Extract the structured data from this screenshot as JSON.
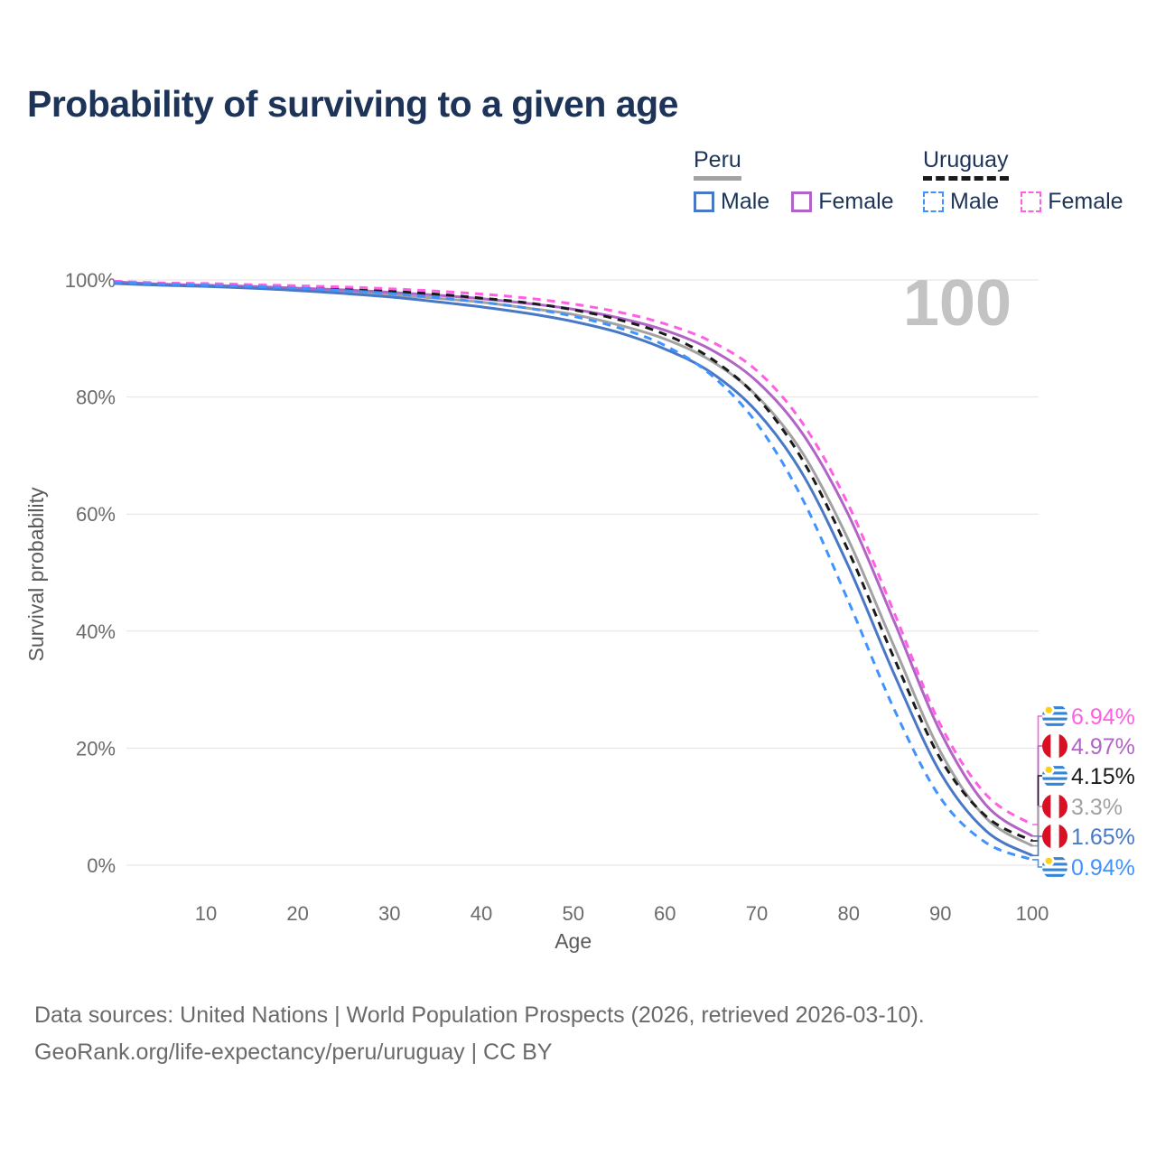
{
  "page": {
    "title": "Probability of surviving to a given age"
  },
  "legend": {
    "peru": {
      "title": "Peru",
      "male": "Male",
      "female": "Female"
    },
    "uruguay": {
      "title": "Uruguay",
      "male": "Male",
      "female": "Female"
    }
  },
  "chart_data": {
    "type": "line",
    "title": "Probability of surviving to a given age",
    "xlabel": "Age",
    "ylabel": "Survival probability",
    "xlim": [
      0,
      100
    ],
    "ylim": [
      0,
      100
    ],
    "xticks": [
      10,
      20,
      30,
      40,
      50,
      60,
      70,
      80,
      90,
      100
    ],
    "yticks": [
      0,
      20,
      40,
      60,
      80,
      100
    ],
    "ytick_suffix": "%",
    "grid": "horizontal",
    "legend_position": "top-right",
    "watermark": "100",
    "x": [
      0,
      5,
      10,
      15,
      20,
      25,
      30,
      35,
      40,
      45,
      50,
      55,
      60,
      65,
      70,
      75,
      80,
      85,
      90,
      95,
      100
    ],
    "series": [
      {
        "name": "Uruguay Female",
        "country": "Uruguay",
        "sex": "Female",
        "flag": "uy",
        "color": "#ff5fe1",
        "dash": true,
        "end_label": "6.94%",
        "values": [
          99.8,
          99.5,
          99.4,
          99.2,
          99.0,
          98.8,
          98.5,
          98.1,
          97.6,
          96.9,
          95.9,
          94.5,
          92.5,
          89.5,
          84.5,
          75.5,
          61.5,
          43.0,
          24.0,
          12.0,
          6.94
        ]
      },
      {
        "name": "Peru Female",
        "country": "Peru",
        "sex": "Female",
        "flag": "pe",
        "color": "#b164c6",
        "dash": false,
        "end_label": "4.97%",
        "values": [
          99.7,
          99.3,
          99.1,
          98.9,
          98.6,
          98.3,
          97.9,
          97.4,
          96.8,
          96.0,
          95.0,
          93.5,
          91.4,
          88.1,
          82.7,
          73.7,
          59.8,
          41.5,
          22.8,
          10.2,
          4.97
        ]
      },
      {
        "name": "Uruguay",
        "country": "Uruguay",
        "sex": "Both",
        "flag": "uy",
        "color": "#1a1a1a",
        "dash": true,
        "end_label": "4.15%",
        "values": [
          99.7,
          99.4,
          99.3,
          99.1,
          98.8,
          98.5,
          98.1,
          97.6,
          96.9,
          96.1,
          94.9,
          93.2,
          90.7,
          86.6,
          80.0,
          69.2,
          53.6,
          35.2,
          18.2,
          8.3,
          4.15
        ]
      },
      {
        "name": "Peru",
        "country": "Peru",
        "sex": "Both",
        "flag": "pe",
        "color": "#a2a2a2",
        "dash": false,
        "end_label": "3.3%",
        "values": [
          99.6,
          99.2,
          99.0,
          98.8,
          98.4,
          98.0,
          97.5,
          96.9,
          96.2,
          95.2,
          94.1,
          92.3,
          89.9,
          86.2,
          80.2,
          70.4,
          55.5,
          37.2,
          19.4,
          8.0,
          3.3
        ]
      },
      {
        "name": "Peru Male",
        "country": "Peru",
        "sex": "Male",
        "flag": "pe",
        "color": "#4878c6",
        "dash": false,
        "end_label": "1.65%",
        "values": [
          99.4,
          99.1,
          98.9,
          98.6,
          98.2,
          97.7,
          97.1,
          96.3,
          95.4,
          94.3,
          92.9,
          91.0,
          88.2,
          84.2,
          77.5,
          66.8,
          51.0,
          32.5,
          15.8,
          5.8,
          1.65
        ]
      },
      {
        "name": "Uruguay Male",
        "country": "Uruguay",
        "sex": "Male",
        "flag": "uy",
        "color": "#4093ff",
        "dash": true,
        "end_label": "0.94%",
        "values": [
          99.6,
          99.3,
          99.1,
          98.9,
          98.6,
          98.2,
          97.7,
          97.0,
          96.2,
          95.2,
          93.8,
          91.8,
          88.8,
          83.8,
          75.5,
          62.5,
          45.0,
          26.5,
          11.5,
          3.8,
          0.94
        ]
      }
    ],
    "flag_colors": {
      "uruguay_blue": "#3585d6",
      "uruguay_sun": "#fcd116",
      "peru_red": "#d91023",
      "white": "#ffffff"
    }
  },
  "colors": {
    "title": "#1d3458",
    "axis_text": "#6b6b6b",
    "axis_label": "#5a5a5a",
    "gridline": "#e3e3e3",
    "watermark": "#c3c3c3",
    "footer": "#6a6a6a"
  },
  "footer": {
    "line1": "Data sources: United Nations | World Population Prospects (2026, retrieved 2026-03-10).",
    "line2": "GeoRank.org/life-expectancy/peru/uruguay | CC BY"
  }
}
